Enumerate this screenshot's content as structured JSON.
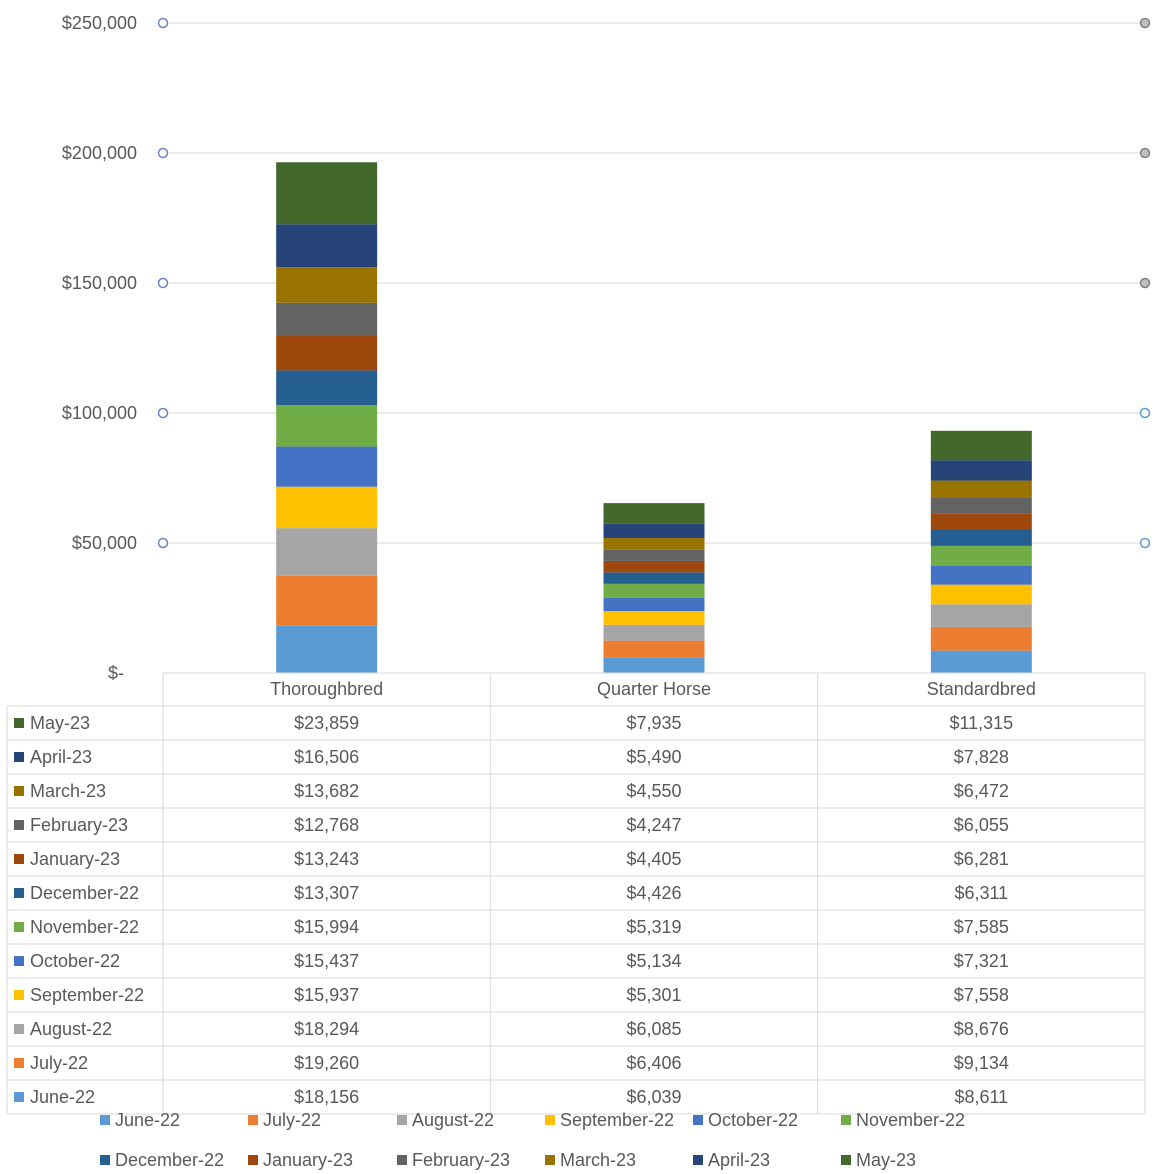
{
  "chart_data": {
    "type": "bar",
    "stacked": true,
    "categories": [
      "Thoroughbred",
      "Quarter Horse",
      "Standardbred"
    ],
    "y_ticks": [
      "$-",
      "$50,000",
      "$100,000",
      "$150,000",
      "$200,000",
      "$250,000"
    ],
    "ylim": [
      0,
      250000
    ],
    "grid": true,
    "legend_position": "bottom",
    "data_table": true,
    "series": [
      {
        "name": "June-22",
        "color": "#5b9bd5",
        "values": [
          18156,
          6039,
          8611
        ],
        "labels": [
          "$18,156",
          "$6,039",
          "$8,611"
        ]
      },
      {
        "name": "July-22",
        "color": "#ed7d31",
        "values": [
          19260,
          6406,
          9134
        ],
        "labels": [
          "$19,260",
          "$6,406",
          "$9,134"
        ]
      },
      {
        "name": "August-22",
        "color": "#a5a5a5",
        "values": [
          18294,
          6085,
          8676
        ],
        "labels": [
          "$18,294",
          "$6,085",
          "$8,676"
        ]
      },
      {
        "name": "September-22",
        "color": "#ffc000",
        "values": [
          15937,
          5301,
          7558
        ],
        "labels": [
          "$15,937",
          "$5,301",
          "$7,558"
        ]
      },
      {
        "name": "October-22",
        "color": "#4472c4",
        "values": [
          15437,
          5134,
          7321
        ],
        "labels": [
          "$15,437",
          "$5,134",
          "$7,321"
        ]
      },
      {
        "name": "November-22",
        "color": "#70ad47",
        "values": [
          15994,
          5319,
          7585
        ],
        "labels": [
          "$15,994",
          "$5,319",
          "$7,585"
        ]
      },
      {
        "name": "December-22",
        "color": "#255e91",
        "values": [
          13307,
          4426,
          6311
        ],
        "labels": [
          "$13,307",
          "$4,426",
          "$6,311"
        ]
      },
      {
        "name": "January-23",
        "color": "#9e480e",
        "values": [
          13243,
          4405,
          6281
        ],
        "labels": [
          "$13,243",
          "$4,405",
          "$6,281"
        ]
      },
      {
        "name": "February-23",
        "color": "#636363",
        "values": [
          12768,
          4247,
          6055
        ],
        "labels": [
          "$12,768",
          "$4,247",
          "$6,055"
        ]
      },
      {
        "name": "March-23",
        "color": "#997300",
        "values": [
          13682,
          4550,
          6472
        ],
        "labels": [
          "$13,682",
          "$4,550",
          "$6,472"
        ]
      },
      {
        "name": "April-23",
        "color": "#264478",
        "values": [
          16506,
          5490,
          7828
        ],
        "labels": [
          "$16,506",
          "$5,490",
          "$7,828"
        ]
      },
      {
        "name": "May-23",
        "color": "#43682b",
        "values": [
          23859,
          7935,
          11315
        ],
        "labels": [
          "$23,859",
          "$7,935",
          "$11,315"
        ]
      }
    ]
  }
}
